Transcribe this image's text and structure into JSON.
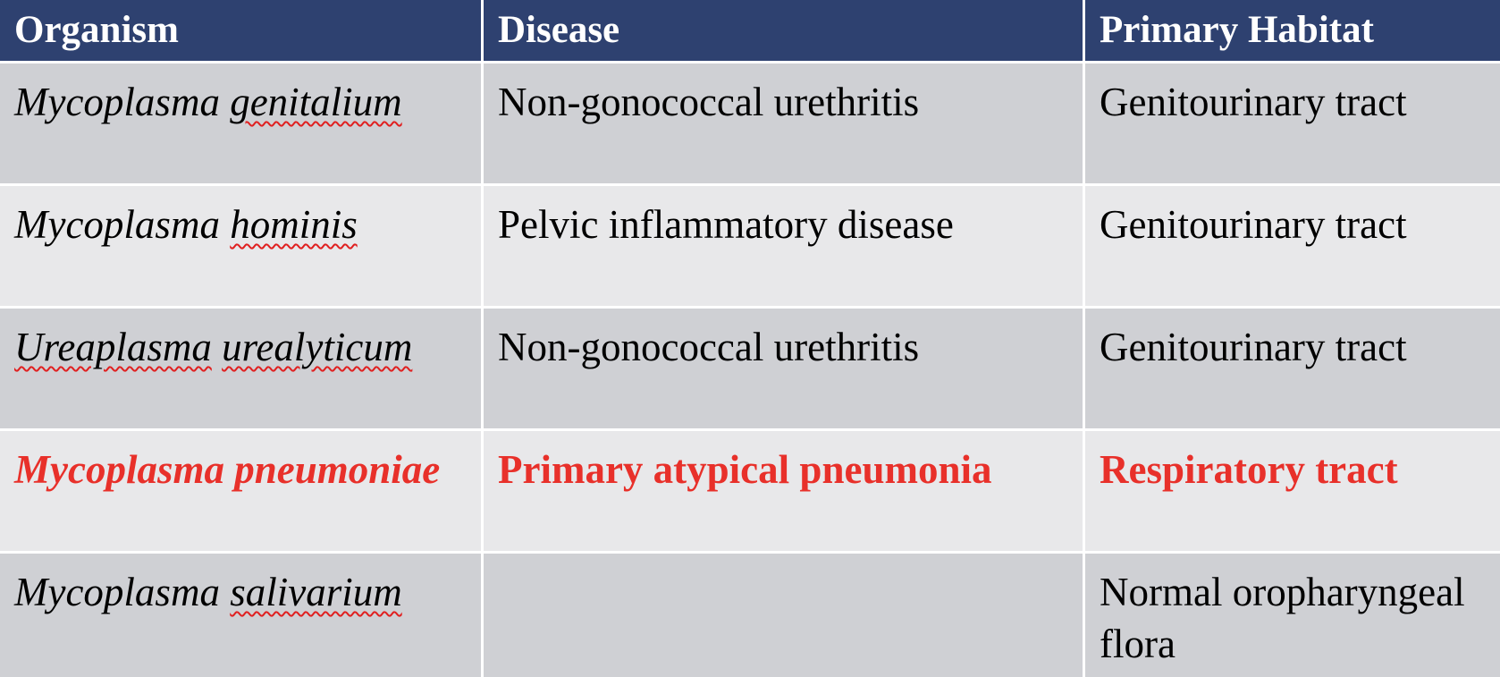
{
  "table": {
    "headers": [
      "Organism",
      "Disease",
      "Primary Habitat"
    ],
    "rows": [
      {
        "genus": "Mycoplasma",
        "species": "genitalium",
        "disease": "Non-gonococcal urethritis",
        "habitat": "Genitourinary tract",
        "highlighted": false
      },
      {
        "genus": "Mycoplasma",
        "species": "hominis",
        "disease": "Pelvic inflammatory disease",
        "habitat": "Genitourinary tract",
        "highlighted": false
      },
      {
        "genus": "Ureaplasma",
        "species": "urealyticum",
        "disease": "Non-gonococcal urethritis",
        "habitat": "Genitourinary tract",
        "highlighted": false
      },
      {
        "genus": "Mycoplasma",
        "species": "pneumoniae",
        "disease": "Primary atypical pneumonia",
        "habitat": "Respiratory tract",
        "highlighted": true
      },
      {
        "genus": "Mycoplasma",
        "species": "salivarium",
        "disease": "",
        "habitat": "Normal oropharyngeal flora",
        "highlighted": false
      }
    ]
  },
  "colors": {
    "header_bg": "#2e4170",
    "row_dark": "#cfd0d4",
    "row_light": "#e8e8ea",
    "highlight_text": "#e8302a",
    "spellcheck_underline": "#e02020"
  }
}
